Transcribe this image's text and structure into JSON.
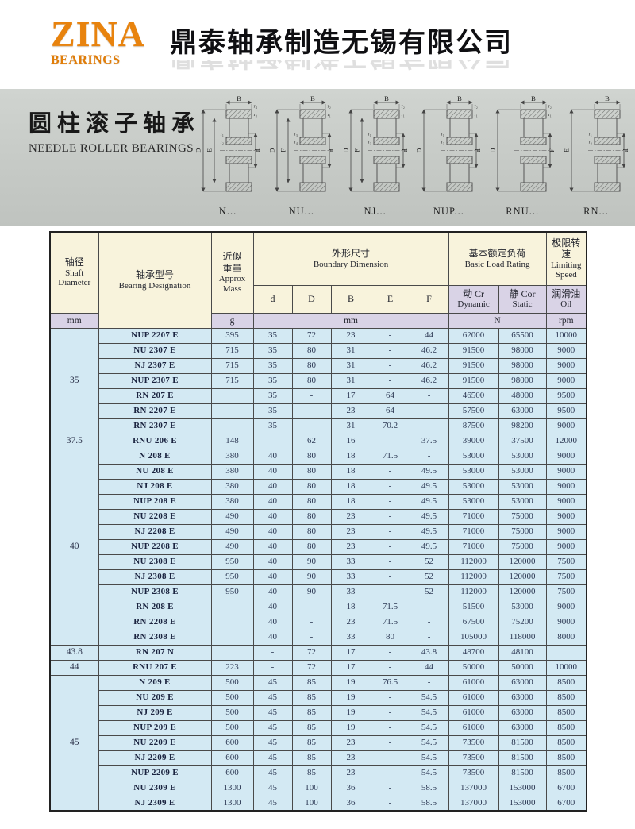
{
  "logo": {
    "name": "ZINA",
    "subtitle": "BEARINGS"
  },
  "company_name": "鼎泰轴承制造无锡有限公司",
  "colors": {
    "brand_orange": "#e8830e",
    "banner_gray": "#c6cac6",
    "header_cream": "#f8f3dc",
    "header_lavender": "#d9d3e6",
    "row_blue": "#d3e9f3"
  },
  "banner": {
    "title_cn": "圆柱滚子轴承",
    "title_en": "NEEDLE ROLLER BEARINGS",
    "diagrams": [
      {
        "caption": "N...",
        "dim_top": "B",
        "dim_left_outer": "D",
        "dim_left_inner": "E",
        "dim_right": "d",
        "r_top_outer": "r₄",
        "r_top_inner": "r₃",
        "r_mid_upper": "r₁",
        "r_mid_lower": "r₂"
      },
      {
        "caption": "NU...",
        "dim_top": "B",
        "dim_left_outer": "D",
        "dim_left_inner": "F",
        "dim_right": "d",
        "r_top_outer": "r₂",
        "r_top_inner": "r₁",
        "r_mid_upper": "r₃",
        "r_mid_lower": "r₄"
      },
      {
        "caption": "NJ...",
        "dim_top": "B",
        "dim_left_outer": "D",
        "dim_left_inner": "F",
        "dim_right": "d",
        "r_top_outer": "r₂",
        "r_top_inner": "r₁",
        "r_mid_upper": "r₁",
        "r_mid_lower": "r₃"
      },
      {
        "caption": "NUP...",
        "dim_top": "B",
        "dim_left_outer": "D",
        "dim_left_inner": "",
        "dim_right": "d",
        "r_top_outer": "r₂",
        "r_top_inner": "r₁",
        "r_mid_upper": "r₁",
        "r_mid_lower": "r₃"
      },
      {
        "caption": "RNU...",
        "dim_top": "B",
        "dim_left_outer": "D",
        "dim_left_inner": "",
        "dim_right": "F",
        "r_top_outer": "r₂",
        "r_top_inner": "r₁",
        "r_mid_upper": "",
        "r_mid_lower": ""
      },
      {
        "caption": "RN...",
        "dim_top": "B",
        "dim_left_outer": "E",
        "dim_left_inner": "",
        "dim_right": "d",
        "r_top_outer": "",
        "r_top_inner": "",
        "r_mid_upper": "r₁",
        "r_mid_lower": "r₂"
      }
    ]
  },
  "table": {
    "header": {
      "shaft_cn": "轴径",
      "shaft_en1": "Shaft",
      "shaft_en2": "Diameter",
      "designation_cn": "轴承型号",
      "designation_en": "Bearing Designation",
      "mass_cn1": "近似",
      "mass_cn2": "重量",
      "mass_en1": "Approx",
      "mass_en2": "Mass",
      "boundary_cn": "外形尺寸",
      "boundary_en": "Boundary Dimension",
      "dims": [
        "d",
        "D",
        "B",
        "E",
        "F"
      ],
      "load_cn": "基本额定负荷",
      "load_en": "Basic Load Rating",
      "dynamic_cn": "动 Cr",
      "dynamic_en": "Dynamic",
      "static_cn": "静 Cor",
      "static_en": "Static",
      "speed_cn": "极限转速",
      "speed_en1": "Limiting",
      "speed_en2": "Speed",
      "oil_cn": "润滑油",
      "oil_en": "Oil",
      "unit_shaft": "mm",
      "unit_mass": "g",
      "unit_dims": "mm",
      "unit_load": "N",
      "unit_speed": "rpm"
    },
    "groups": [
      {
        "shaft": "35",
        "rows": [
          [
            "NUP 2207 E",
            "395",
            "35",
            "72",
            "23",
            "-",
            "44",
            "62000",
            "65500",
            "10000"
          ],
          [
            "NU 2307 E",
            "715",
            "35",
            "80",
            "31",
            "-",
            "46.2",
            "91500",
            "98000",
            "9000"
          ],
          [
            "NJ 2307 E",
            "715",
            "35",
            "80",
            "31",
            "-",
            "46.2",
            "91500",
            "98000",
            "9000"
          ],
          [
            "NUP 2307 E",
            "715",
            "35",
            "80",
            "31",
            "-",
            "46.2",
            "91500",
            "98000",
            "9000"
          ],
          [
            "RN 207 E",
            "",
            "35",
            "-",
            "17",
            "64",
            "-",
            "46500",
            "48000",
            "9500"
          ],
          [
            "RN 2207 E",
            "",
            "35",
            "-",
            "23",
            "64",
            "-",
            "57500",
            "63000",
            "9500"
          ],
          [
            "RN 2307 E",
            "",
            "35",
            "-",
            "31",
            "70.2",
            "-",
            "87500",
            "98200",
            "9000"
          ]
        ]
      },
      {
        "shaft": "37.5",
        "rows": [
          [
            "RNU 206 E",
            "148",
            "-",
            "62",
            "16",
            "-",
            "37.5",
            "39000",
            "37500",
            "12000"
          ]
        ]
      },
      {
        "shaft": "40",
        "rows": [
          [
            "N 208 E",
            "380",
            "40",
            "80",
            "18",
            "71.5",
            "-",
            "53000",
            "53000",
            "9000"
          ],
          [
            "NU 208 E",
            "380",
            "40",
            "80",
            "18",
            "-",
            "49.5",
            "53000",
            "53000",
            "9000"
          ],
          [
            "NJ 208 E",
            "380",
            "40",
            "80",
            "18",
            "-",
            "49.5",
            "53000",
            "53000",
            "9000"
          ],
          [
            "NUP 208 E",
            "380",
            "40",
            "80",
            "18",
            "-",
            "49.5",
            "53000",
            "53000",
            "9000"
          ],
          [
            "NU 2208 E",
            "490",
            "40",
            "80",
            "23",
            "-",
            "49.5",
            "71000",
            "75000",
            "9000"
          ],
          [
            "NJ 2208 E",
            "490",
            "40",
            "80",
            "23",
            "-",
            "49.5",
            "71000",
            "75000",
            "9000"
          ],
          [
            "NUP 2208 E",
            "490",
            "40",
            "80",
            "23",
            "-",
            "49.5",
            "71000",
            "75000",
            "9000"
          ],
          [
            "NU 2308 E",
            "950",
            "40",
            "90",
            "33",
            "-",
            "52",
            "112000",
            "120000",
            "7500"
          ],
          [
            "NJ 2308 E",
            "950",
            "40",
            "90",
            "33",
            "-",
            "52",
            "112000",
            "120000",
            "7500"
          ],
          [
            "NUP 2308 E",
            "950",
            "40",
            "90",
            "33",
            "-",
            "52",
            "112000",
            "120000",
            "7500"
          ],
          [
            "RN 208 E",
            "",
            "40",
            "-",
            "18",
            "71.5",
            "-",
            "51500",
            "53000",
            "9000"
          ],
          [
            "RN 2208 E",
            "",
            "40",
            "-",
            "23",
            "71.5",
            "-",
            "67500",
            "75200",
            "9000"
          ],
          [
            "RN 2308 E",
            "",
            "40",
            "-",
            "33",
            "80",
            "-",
            "105000",
            "118000",
            "8000"
          ]
        ]
      },
      {
        "shaft": "43.8",
        "rows": [
          [
            "RN 207 N",
            "",
            "-",
            "72",
            "17",
            "-",
            "43.8",
            "48700",
            "48100",
            ""
          ]
        ]
      },
      {
        "shaft": "44",
        "rows": [
          [
            "RNU 207 E",
            "223",
            "-",
            "72",
            "17",
            "-",
            "44",
            "50000",
            "50000",
            "10000"
          ]
        ]
      },
      {
        "shaft": "45",
        "rows": [
          [
            "N 209 E",
            "500",
            "45",
            "85",
            "19",
            "76.5",
            "-",
            "61000",
            "63000",
            "8500"
          ],
          [
            "NU 209 E",
            "500",
            "45",
            "85",
            "19",
            "-",
            "54.5",
            "61000",
            "63000",
            "8500"
          ],
          [
            "NJ 209 E",
            "500",
            "45",
            "85",
            "19",
            "-",
            "54.5",
            "61000",
            "63000",
            "8500"
          ],
          [
            "NUP 209 E",
            "500",
            "45",
            "85",
            "19",
            "-",
            "54.5",
            "61000",
            "63000",
            "8500"
          ],
          [
            "NU 2209 E",
            "600",
            "45",
            "85",
            "23",
            "-",
            "54.5",
            "73500",
            "81500",
            "8500"
          ],
          [
            "NJ 2209 E",
            "600",
            "45",
            "85",
            "23",
            "-",
            "54.5",
            "73500",
            "81500",
            "8500"
          ],
          [
            "NUP 2209 E",
            "600",
            "45",
            "85",
            "23",
            "-",
            "54.5",
            "73500",
            "81500",
            "8500"
          ],
          [
            "NU 2309 E",
            "1300",
            "45",
            "100",
            "36",
            "-",
            "58.5",
            "137000",
            "153000",
            "6700"
          ],
          [
            "NJ 2309 E",
            "1300",
            "45",
            "100",
            "36",
            "-",
            "58.5",
            "137000",
            "153000",
            "6700"
          ]
        ]
      }
    ]
  }
}
